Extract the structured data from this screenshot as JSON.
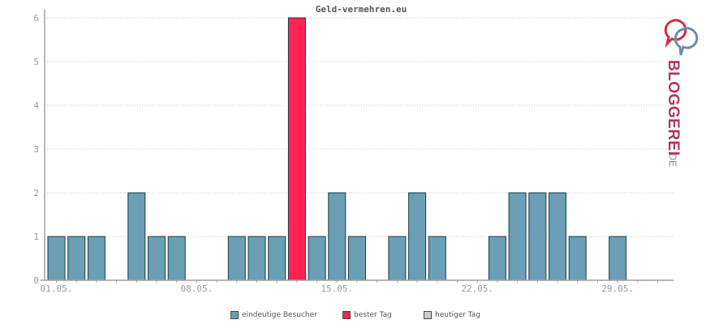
{
  "chart_data": {
    "type": "bar",
    "title": "Geld-vermehren.eu",
    "categories": [
      "01.05.",
      "02.05.",
      "03.05.",
      "04.05.",
      "05.05.",
      "06.05.",
      "07.05.",
      "08.05.",
      "09.05.",
      "10.05.",
      "11.05.",
      "12.05.",
      "13.05.",
      "14.05.",
      "15.05.",
      "16.05.",
      "17.05.",
      "18.05.",
      "19.05.",
      "20.05.",
      "21.05.",
      "22.05.",
      "23.05.",
      "24.05.",
      "25.05.",
      "26.05.",
      "27.05.",
      "28.05.",
      "29.05.",
      "30.05.",
      "31.05."
    ],
    "x_tick_labels": [
      "01.05.",
      "08.05.",
      "15.05.",
      "22.05.",
      "29.05."
    ],
    "series": [
      {
        "name": "eindeutige Besucher",
        "values": [
          1,
          1,
          1,
          0,
          2,
          1,
          1,
          0,
          0,
          1,
          1,
          1,
          6,
          1,
          2,
          1,
          0,
          1,
          2,
          1,
          0,
          0,
          1,
          2,
          2,
          2,
          1,
          0,
          1,
          0,
          0
        ]
      }
    ],
    "best_day_index": 12,
    "ylim": [
      0,
      6
    ],
    "y_ticks": [
      0,
      1,
      2,
      3,
      4,
      5,
      6
    ],
    "grid": true,
    "legend_position": "bottom"
  },
  "colors": {
    "bar": "#6a9fb5",
    "best": "#ff2255",
    "today": "#cccccc",
    "bar_stroke": "#1f3b47",
    "grid": "#c8c8c8",
    "axis": "#a0a0a0"
  },
  "legend": [
    {
      "label": "eindeutige Besucher",
      "color": "#6a9fb5"
    },
    {
      "label": "bester Tag",
      "color": "#ff2255"
    },
    {
      "label": "heutiger Tag",
      "color": "#cccccc"
    }
  ],
  "logo": {
    "text_main": "BLOGGEREI",
    "text_suffix": ".DE",
    "icon": "bloggerei-logo-icon"
  }
}
